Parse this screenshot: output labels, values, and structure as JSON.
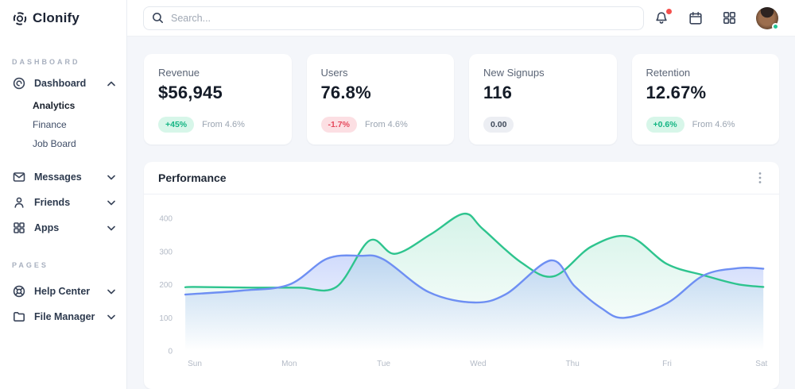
{
  "app": {
    "logo_text": "Clonify"
  },
  "topbar": {
    "search_placeholder": "Search...",
    "icons": [
      "bell-icon",
      "calendar-icon",
      "apps-grid-icon",
      "avatar"
    ]
  },
  "sidebar": {
    "sections": [
      {
        "label": "DASHBOARD",
        "items": [
          {
            "label": "Dashboard",
            "icon": "dashboard-icon",
            "expanded": true,
            "children": [
              "Analytics",
              "Finance",
              "Job Board"
            ],
            "active_child": "Analytics"
          },
          {
            "label": "Messages",
            "icon": "mail-icon"
          },
          {
            "label": "Friends",
            "icon": "user-icon"
          },
          {
            "label": "Apps",
            "icon": "grid-icon"
          }
        ]
      },
      {
        "label": "PAGES",
        "items": [
          {
            "label": "Help Center",
            "icon": "lifebuoy-icon"
          },
          {
            "label": "File Manager",
            "icon": "folder-icon"
          }
        ]
      }
    ]
  },
  "cards": [
    {
      "label": "Revenue",
      "value": "$56,945",
      "badge": "+45%",
      "badge_type": "positive",
      "note": "From 4.6%"
    },
    {
      "label": "Users",
      "value": "76.8%",
      "badge": "-1.7%",
      "badge_type": "negative",
      "note": "From 4.6%"
    },
    {
      "label": "New Signups",
      "value": "116",
      "badge": "0.00",
      "badge_type": "neutral",
      "note": ""
    },
    {
      "label": "Retention",
      "value": "12.67%",
      "badge": "+0.6%",
      "badge_type": "positive",
      "note": "From 4.6%"
    }
  ],
  "panel": {
    "title": "Performance"
  },
  "chart_data": {
    "type": "area",
    "title": "Performance",
    "categories": [
      "Sun",
      "Mon",
      "Tue",
      "Wed",
      "Thu",
      "Fri",
      "Sat"
    ],
    "y_ticks": [
      0,
      100,
      200,
      300,
      400
    ],
    "ylim": [
      0,
      440
    ],
    "grid": false,
    "legend": "none",
    "series": [
      {
        "name": "series-green",
        "color": "#2ec48e",
        "fill_top": "rgba(46,196,142,0.20)",
        "fill_bottom": "rgba(46,196,142,0)",
        "points": [
          [
            -0.1,
            192
          ],
          [
            0,
            193
          ],
          [
            0.6,
            191
          ],
          [
            1.1,
            191
          ],
          [
            1.5,
            193
          ],
          [
            1.85,
            333
          ],
          [
            2.12,
            293
          ],
          [
            2.5,
            352
          ],
          [
            2.85,
            414
          ],
          [
            3.05,
            368
          ],
          [
            3.45,
            268
          ],
          [
            3.8,
            225
          ],
          [
            4.2,
            315
          ],
          [
            4.6,
            345
          ],
          [
            5.0,
            262
          ],
          [
            5.39,
            228
          ],
          [
            5.75,
            201
          ],
          [
            6.02,
            193
          ]
        ]
      },
      {
        "name": "series-blue",
        "color": "#6e8ff3",
        "fill_top": "rgba(110,143,243,0.32)",
        "fill_bottom": "rgba(110,143,243,0)",
        "points": [
          [
            -0.1,
            170
          ],
          [
            0,
            172
          ],
          [
            0.5,
            182
          ],
          [
            1,
            200
          ],
          [
            1.4,
            278
          ],
          [
            1.75,
            287
          ],
          [
            2.0,
            276
          ],
          [
            2.48,
            177
          ],
          [
            2.96,
            146
          ],
          [
            3.3,
            172
          ],
          [
            3.77,
            273
          ],
          [
            4.02,
            196
          ],
          [
            4.3,
            130
          ],
          [
            4.55,
            100
          ],
          [
            5.0,
            144
          ],
          [
            5.39,
            228
          ],
          [
            5.77,
            250
          ],
          [
            6.02,
            248
          ]
        ]
      }
    ]
  }
}
